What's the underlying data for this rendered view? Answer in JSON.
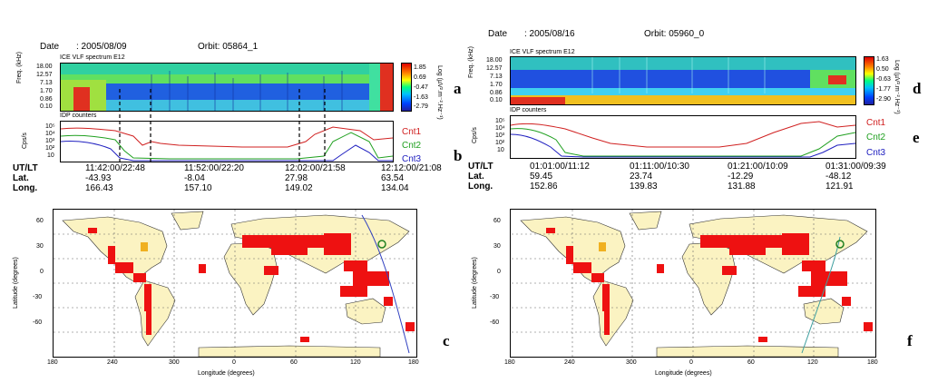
{
  "left": {
    "date_label": "Date",
    "date_value": ": 2005/08/09",
    "orbit_label": "Orbit: 05864_1",
    "spec_title": "ICE VLF spectrum  E12",
    "freq_ticks": [
      "18.00",
      "12.57",
      "7.13",
      "1.70",
      "0.86",
      "0.10"
    ],
    "freq_axis": "Freq. (kHz)",
    "colorbar_ticks": [
      "1.85",
      "0.69",
      "-0.47",
      "-1.63",
      "-2.79"
    ],
    "colorbar_axis": "Log (µV².m⁻².Hz⁻¹)",
    "idp_title": "IDP counters",
    "idp_axis": "Cps/s",
    "idp_ticks": [
      "10⁵",
      "10⁴",
      "10³",
      "10²",
      "10"
    ],
    "legend": [
      "Cnt1",
      "Cnt2",
      "Cnt3"
    ],
    "row_labels": [
      "UT/LT",
      "Lat.",
      "Long."
    ],
    "columns": [
      {
        "ut": "11:42:00/22:48",
        "lat": "-43.93",
        "long": "166.43"
      },
      {
        "ut": "11:52:00/22:20",
        "lat": "-8.04",
        "long": "157.10"
      },
      {
        "ut": "12:02:00/21:58",
        "lat": "27.98",
        "long": "149.02"
      },
      {
        "ut": "12:12:00/21:08",
        "lat": "63.54",
        "long": "134.04"
      }
    ],
    "map_xticks": [
      "180",
      "240",
      "300",
      "0",
      "60",
      "120",
      "180"
    ],
    "map_yticks": [
      "60",
      "30",
      "0",
      "-30",
      "-60"
    ],
    "map_xlabel": "Longitude (degrees)",
    "map_ylabel": "Latitude (degrees)",
    "panel_letters": [
      "a",
      "b",
      "c"
    ]
  },
  "right": {
    "date_label": "Date",
    "date_value": ": 2005/08/16",
    "orbit_label": "Orbit: 05960_0",
    "spec_title": "ICE VLF spectrum  E12",
    "freq_ticks": [
      "18.00",
      "12.57",
      "7.13",
      "1.70",
      "0.86",
      "0.10"
    ],
    "freq_axis": "Freq. (kHz)",
    "colorbar_ticks": [
      "1.63",
      "0.50",
      "-0.63",
      "-1.77",
      "-2.90"
    ],
    "colorbar_axis": "Log (µV².m⁻².Hz⁻¹)",
    "idp_title": "IDP counters",
    "idp_axis": "Cps/s",
    "idp_ticks": [
      "10⁵",
      "10⁴",
      "10³",
      "10²",
      "10"
    ],
    "legend": [
      "Cnt1",
      "Cnt2",
      "Cnt3"
    ],
    "row_labels": [
      "UT/LT",
      "Lat.",
      "Long."
    ],
    "columns": [
      {
        "ut": "01:01:00/11:12",
        "lat": "59.45",
        "long": "152.86"
      },
      {
        "ut": "01:11:00/10:30",
        "lat": "23.74",
        "long": "139.83"
      },
      {
        "ut": "01:21:00/10:09",
        "lat": "-12.29",
        "long": "131.88"
      },
      {
        "ut": "01:31:00/09:39",
        "lat": "-48.12",
        "long": "121.91"
      }
    ],
    "map_xticks": [
      "180",
      "240",
      "300",
      "0",
      "60",
      "120",
      "180"
    ],
    "map_yticks": [
      "60",
      "30",
      "0",
      "-30",
      "-60"
    ],
    "map_xlabel": "Longitude (degrees)",
    "map_ylabel": "Latitude (degrees)",
    "panel_letters": [
      "d",
      "e",
      "f"
    ]
  },
  "colors": {
    "cnt1": "#d02020",
    "cnt2": "#20a020",
    "cnt3": "#2020c0",
    "land": "#fbf3c2",
    "seismic": "#ee1111"
  }
}
